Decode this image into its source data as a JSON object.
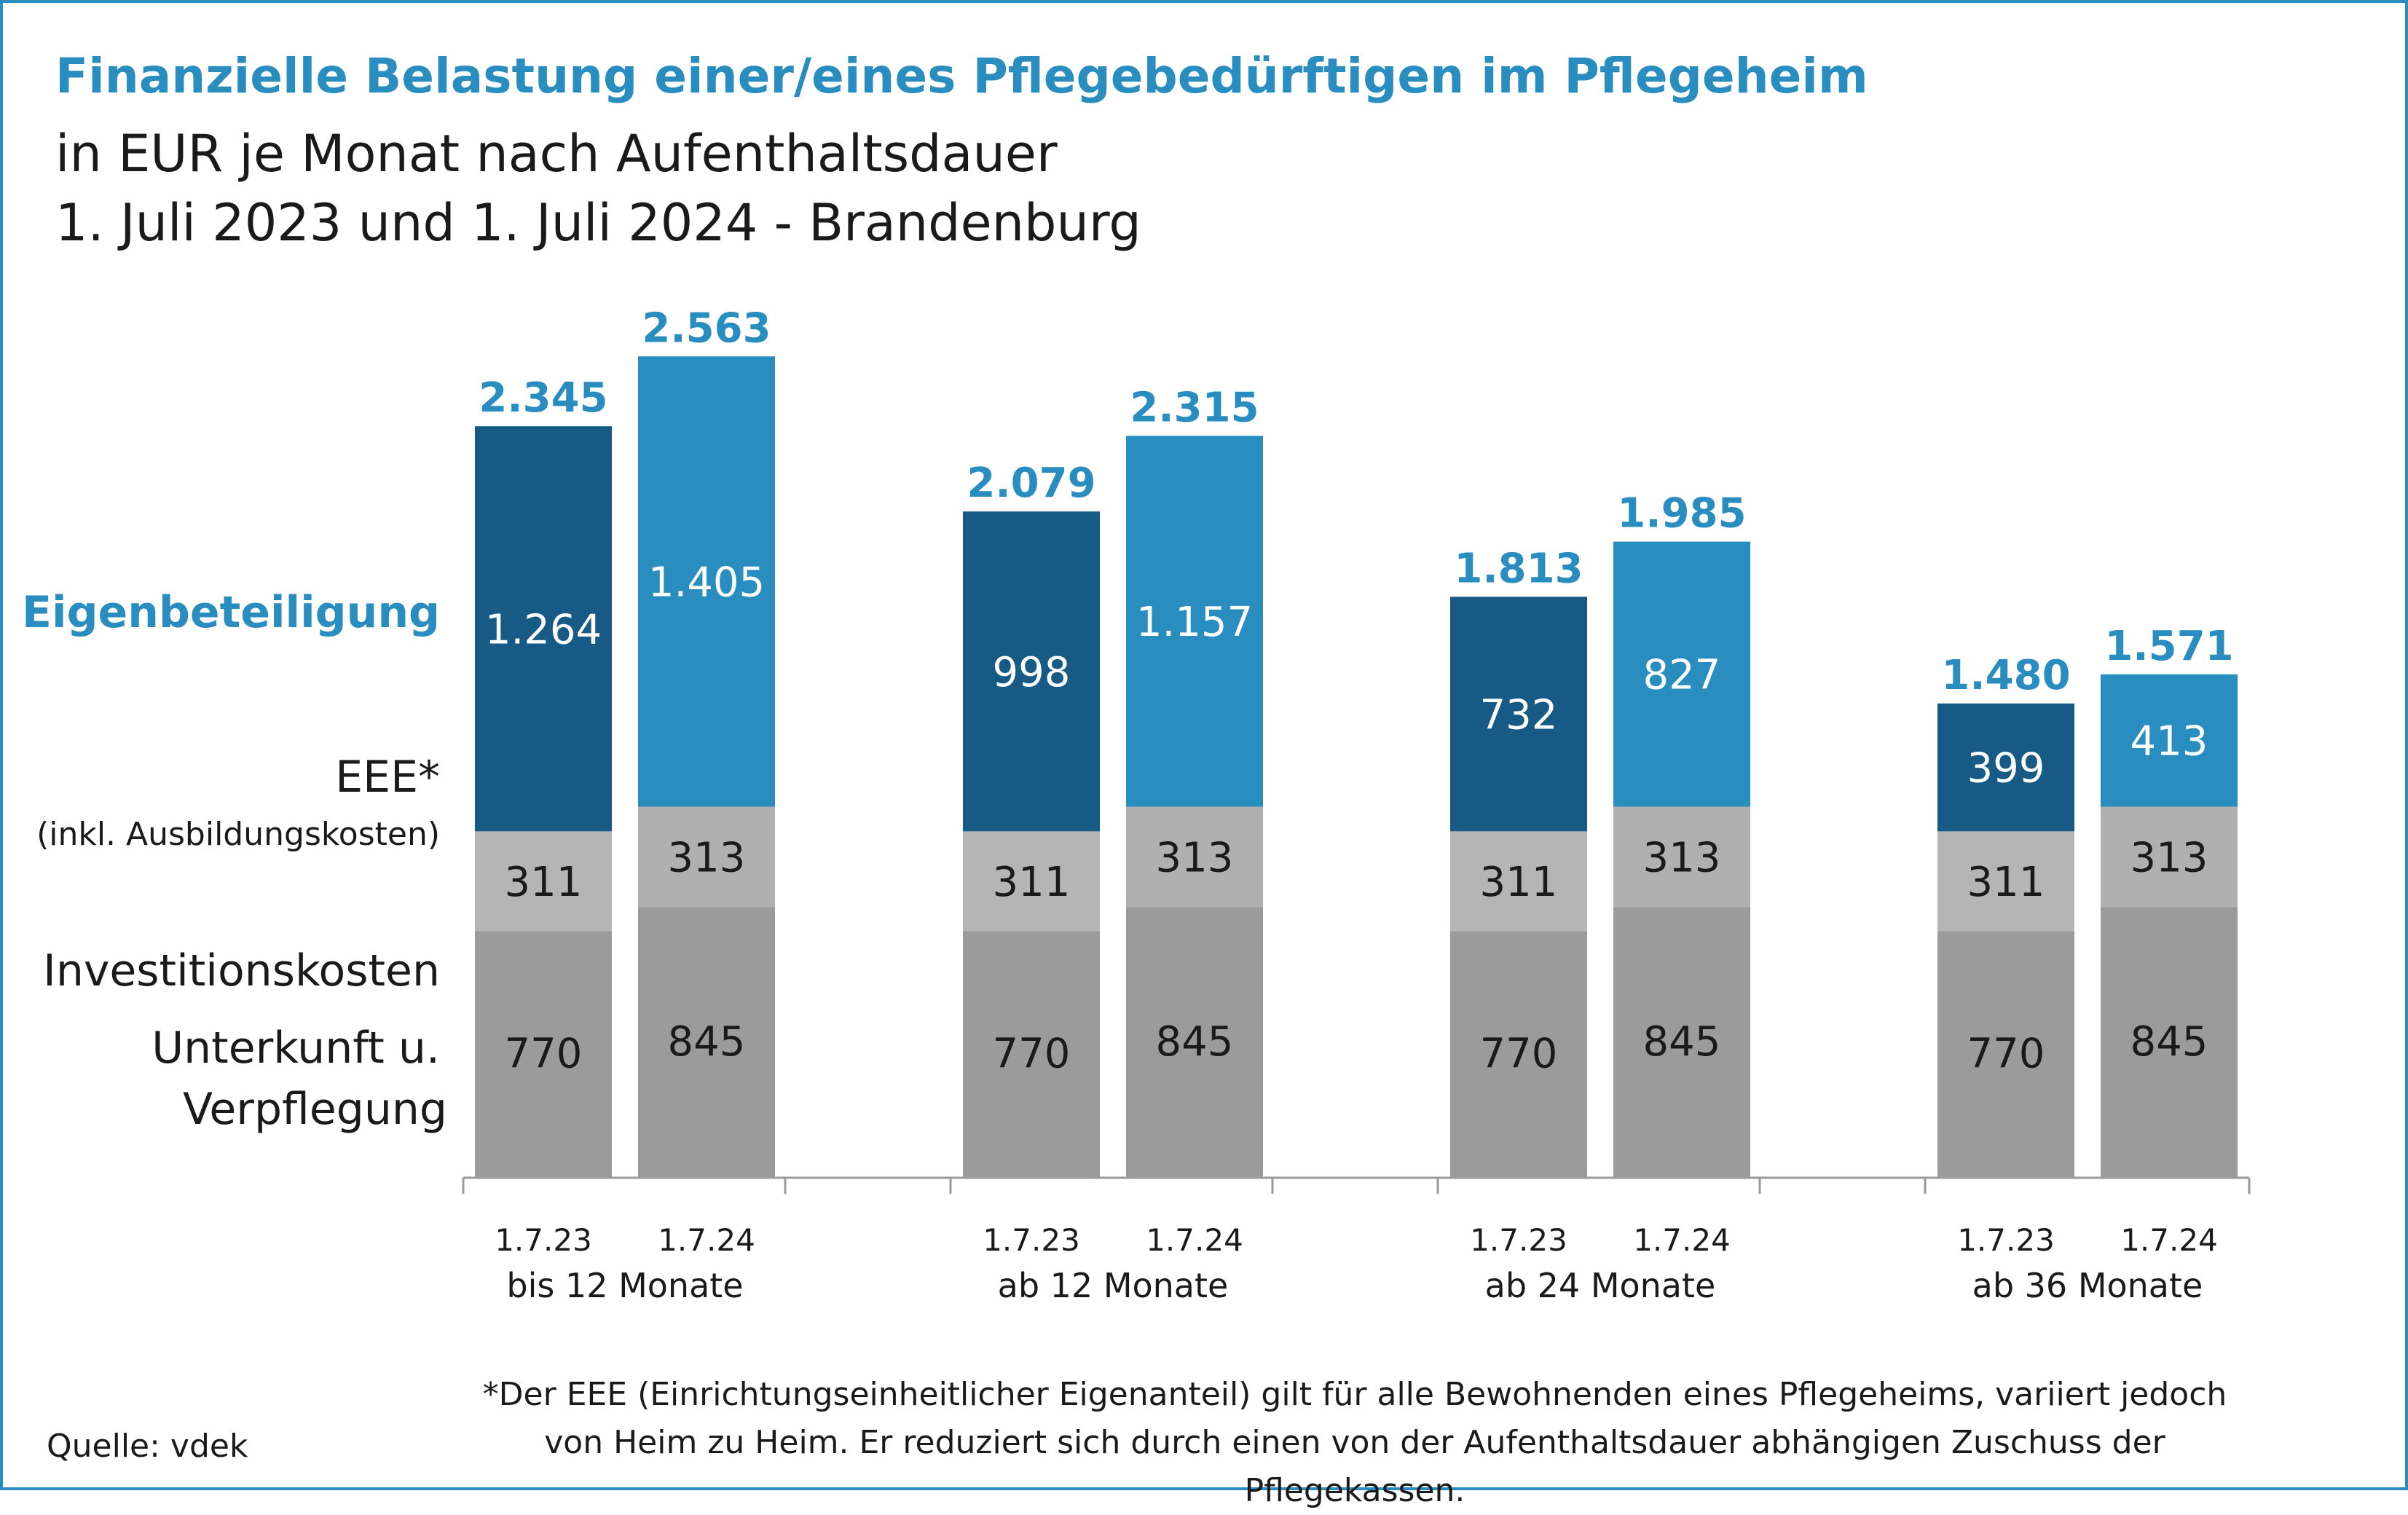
{
  "title": "Finanzielle Belastung einer/eines Pflegebedürftigen im Pflegeheim",
  "subtitle_line1": "in EUR je Monat nach Aufenthaltsdauer",
  "subtitle_line2": "1. Juli 2023 und 1. Juli 2024 - Brandenburg",
  "row_labels": {
    "eigenbeteiligung": "Eigenbeteiligung",
    "eee": "EEE*",
    "eee_note": "(inkl. Ausbildungskosten)",
    "investitionskosten": "Investitionskosten",
    "unterkunft_line1": "Unterkunft u.",
    "unterkunft_line2": "Verpflegung"
  },
  "footnote": "*Der EEE (Einrichtungseinheitlicher Eigenanteil) gilt für alle Bewohnenden eines Pflegeheims, variiert jedoch von Heim zu Heim. Er reduziert sich durch einen von der Aufenthaltsdauer abhängigen Zuschuss der Pflegekassen.",
  "source": "Quelle: vdek",
  "colors": {
    "accent": "#2a8dc0",
    "eee_2023": "#175a85",
    "eee_2024": "#2a8dc0",
    "invest_2023": "#b5b5b5",
    "invest_2024": "#b0b0b0",
    "unterkunft": "#9b9b9b",
    "axis": "#999999"
  },
  "chart_data": {
    "type": "bar",
    "stacked": true,
    "ylim": [
      0,
      2600
    ],
    "stack_order": [
      "Unterkunft u. Verpflegung",
      "Investitionskosten",
      "EEE*"
    ],
    "groups": [
      {
        "label": "bis 12 Monate",
        "bars": [
          {
            "x": "1.7.23",
            "unterkunft": 770,
            "invest": 311,
            "eee": 1264,
            "total": "2.345",
            "labels": [
              "770",
              "311",
              "1.264"
            ]
          },
          {
            "x": "1.7.24",
            "unterkunft": 845,
            "invest": 313,
            "eee": 1405,
            "total": "2.563",
            "labels": [
              "845",
              "313",
              "1.405"
            ]
          }
        ]
      },
      {
        "label": "ab 12 Monate",
        "bars": [
          {
            "x": "1.7.23",
            "unterkunft": 770,
            "invest": 311,
            "eee": 998,
            "total": "2.079",
            "labels": [
              "770",
              "311",
              "998"
            ]
          },
          {
            "x": "1.7.24",
            "unterkunft": 845,
            "invest": 313,
            "eee": 1157,
            "total": "2.315",
            "labels": [
              "845",
              "313",
              "1.157"
            ]
          }
        ]
      },
      {
        "label": "ab 24 Monate",
        "bars": [
          {
            "x": "1.7.23",
            "unterkunft": 770,
            "invest": 311,
            "eee": 732,
            "total": "1.813",
            "labels": [
              "770",
              "311",
              "732"
            ]
          },
          {
            "x": "1.7.24",
            "unterkunft": 845,
            "invest": 313,
            "eee": 827,
            "total": "1.985",
            "labels": [
              "845",
              "313",
              "827"
            ]
          }
        ]
      },
      {
        "label": "ab 36 Monate",
        "bars": [
          {
            "x": "1.7.23",
            "unterkunft": 770,
            "invest": 311,
            "eee": 399,
            "total": "1.480",
            "labels": [
              "770",
              "311",
              "399"
            ]
          },
          {
            "x": "1.7.24",
            "unterkunft": 845,
            "invest": 313,
            "eee": 413,
            "total": "1.571",
            "labels": [
              "845",
              "313",
              "413"
            ]
          }
        ]
      }
    ]
  }
}
